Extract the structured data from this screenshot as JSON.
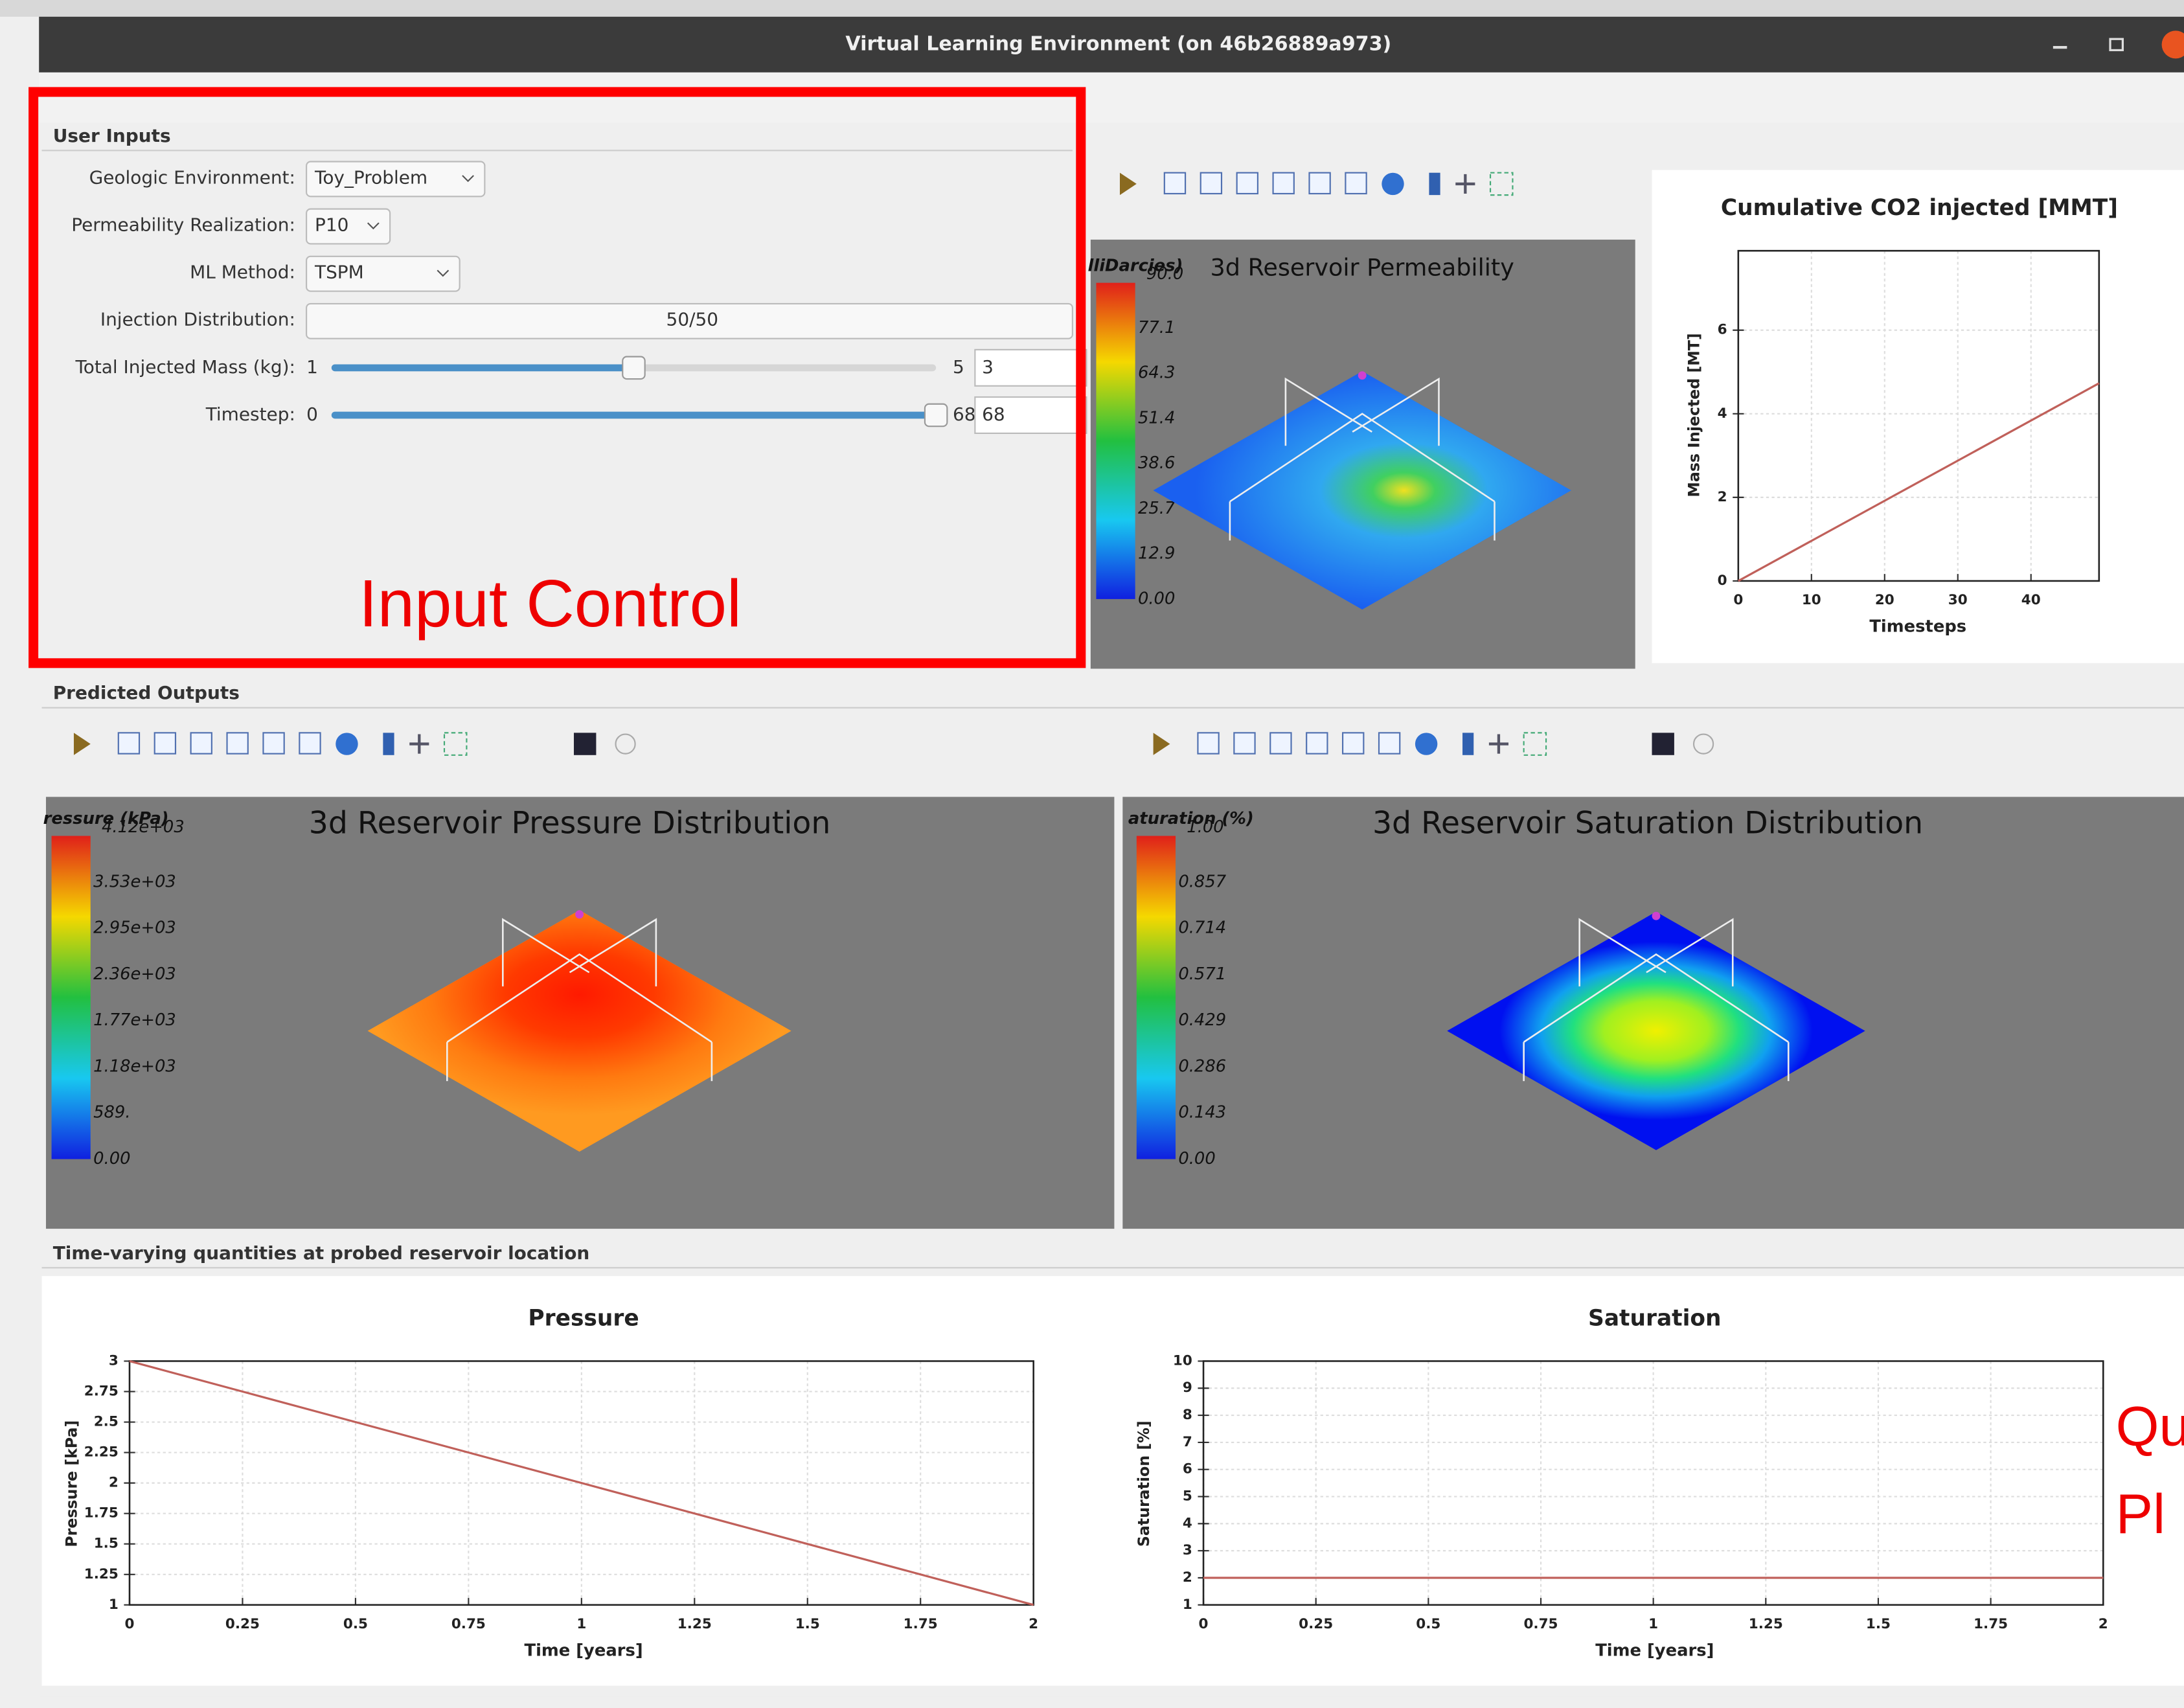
{
  "window": {
    "title": "Virtual Learning Environment (on 46b26889a973)"
  },
  "user_inputs": {
    "heading": "User Inputs",
    "fields": [
      {
        "label": "Geologic Environment:",
        "value": "Toy_Problem"
      },
      {
        "label": "Permeability Realization:",
        "value": "P10"
      },
      {
        "label": "ML Method:",
        "value": "TSPM"
      },
      {
        "label": "Injection Distribution:",
        "value": "50/50"
      }
    ],
    "sliders": [
      {
        "label": "Total Injected Mass (kg):",
        "min": 1,
        "max": 5,
        "value": 3
      },
      {
        "label": "Timestep:",
        "min": 0,
        "max": 68,
        "value": 68
      }
    ]
  },
  "annotations": [
    "Input Control",
    "Qu",
    "Pl"
  ],
  "predicted_outputs": {
    "heading": "Predicted Outputs"
  },
  "probe": {
    "heading": "Time-varying quantities at probed reservoir location"
  },
  "viewers": [
    {
      "title": "3d Reservoir Permeability",
      "scalar_label": "lliDarcies)",
      "colorbar_labels": [
        "90.0",
        "77.1",
        "64.3",
        "51.4",
        "38.6",
        "25.7",
        "12.9",
        "0.00"
      ]
    },
    {
      "title": "3d Reservoir Pressure Distribution",
      "scalar_label": "ressure (kPa)",
      "colorbar_labels": [
        "4.12e+03",
        "3.53e+03",
        "2.95e+03",
        "2.36e+03",
        "1.77e+03",
        "1.18e+03",
        "589.",
        "0.00"
      ]
    },
    {
      "title": "3d Reservoir Saturation Distribution",
      "scalar_label": "aturation (%)",
      "colorbar_labels": [
        "1.00",
        "0.857",
        "0.714",
        "0.571",
        "0.429",
        "0.286",
        "0.143",
        "0.00"
      ]
    }
  ],
  "charts": [
    {
      "type": "line",
      "title": "Cumulative CO2 injected [MMT]",
      "x_label": "Timesteps",
      "y_label": "Mass Injected [MT]",
      "xlim": [
        0,
        49.3
      ],
      "ylim": [
        0,
        7.9
      ],
      "xticks": [
        0,
        10,
        20,
        30,
        40
      ],
      "yticks": [
        0,
        2,
        4,
        6
      ],
      "x": [
        0,
        49.3
      ],
      "values": [
        0,
        4.73
      ],
      "color": "#c0605a",
      "grid": true
    },
    {
      "type": "line",
      "title": "Pressure",
      "x_label": "Time [years]",
      "y_label": "Pressure [kPa]",
      "xlim": [
        0,
        2
      ],
      "ylim": [
        1,
        3
      ],
      "xticks": [
        0,
        0.25,
        0.5,
        0.75,
        1,
        1.25,
        1.5,
        1.75,
        2
      ],
      "yticks": [
        1,
        1.25,
        1.5,
        1.75,
        2,
        2.25,
        2.5,
        2.75,
        3
      ],
      "x": [
        0,
        2
      ],
      "values": [
        3,
        1
      ],
      "color": "#c0605a",
      "grid": true
    },
    {
      "type": "line",
      "title": "Saturation",
      "x_label": "Time [years]",
      "y_label": "Saturation [%]",
      "xlim": [
        0,
        2
      ],
      "ylim": [
        1,
        10
      ],
      "xticks": [
        0,
        0.25,
        0.5,
        0.75,
        1,
        1.25,
        1.5,
        1.75,
        2
      ],
      "yticks": [
        1,
        2,
        3,
        4,
        5,
        6,
        7,
        8,
        9,
        10
      ],
      "x": [
        0,
        2
      ],
      "values": [
        2,
        2
      ],
      "color": "#c0605a",
      "grid": true
    }
  ]
}
